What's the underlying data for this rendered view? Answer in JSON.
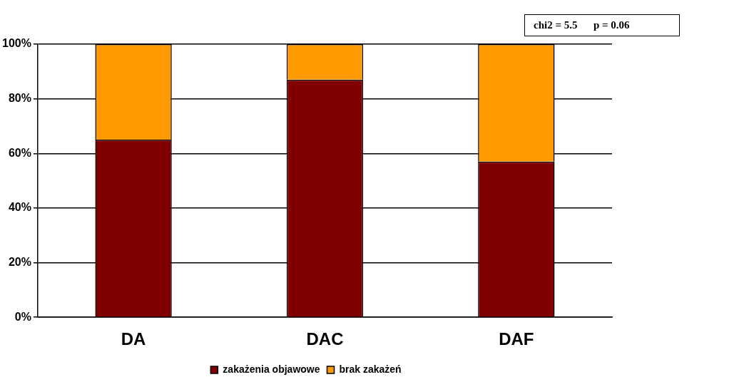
{
  "chart_data": {
    "type": "bar",
    "stacked": true,
    "categories": [
      "DA",
      "DAC",
      "DAF"
    ],
    "series": [
      {
        "name": "zakażenia objawowe",
        "color": "#800000",
        "values": [
          65,
          87,
          57
        ]
      },
      {
        "name": "brak zakażeń",
        "color": "#ff9900",
        "values": [
          35,
          13,
          43
        ]
      }
    ],
    "ylim": [
      0,
      100
    ],
    "yticks": [
      {
        "value": 0,
        "label": "0%"
      },
      {
        "value": 20,
        "label": "20%"
      },
      {
        "value": 40,
        "label": "40%"
      },
      {
        "value": 60,
        "label": "60%"
      },
      {
        "value": 80,
        "label": "80%"
      },
      {
        "value": 100,
        "label": "100%"
      }
    ],
    "grid": "y",
    "legend": "bottom",
    "annotations": [
      "chi2 = 5.5      p = 0.06"
    ]
  }
}
